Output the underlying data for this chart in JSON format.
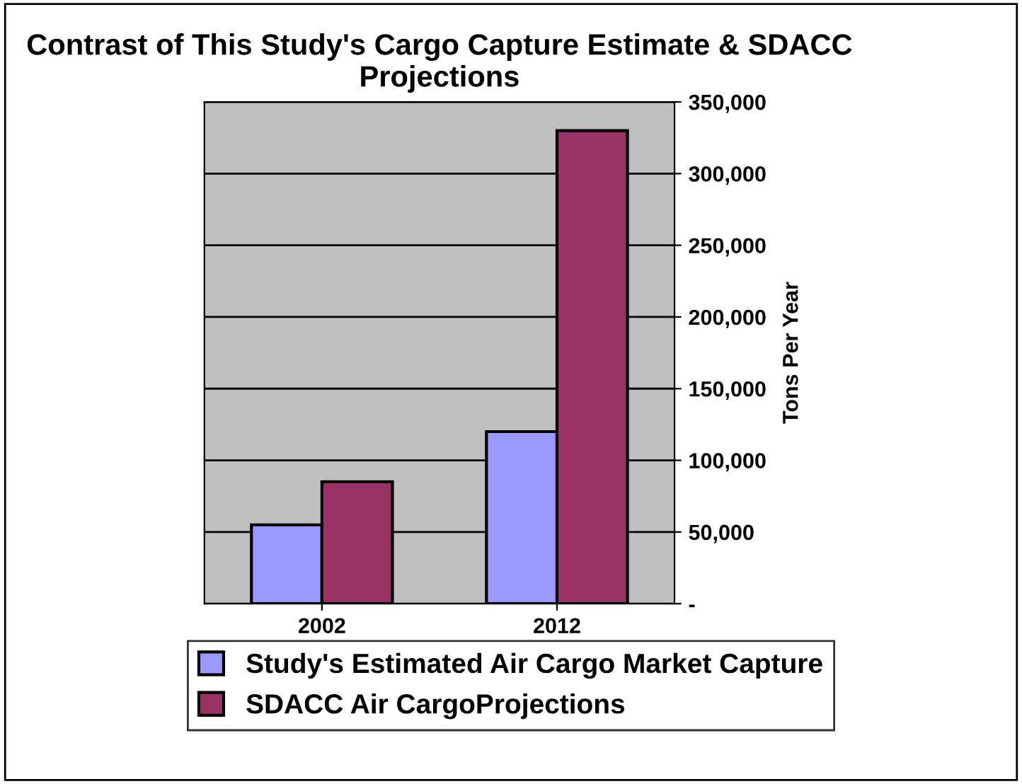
{
  "chart_data": {
    "type": "bar",
    "title": "Contrast of This Study's Cargo Capture Estimate & SDACC Projections",
    "ylabel": "Tons Per Year",
    "categories": [
      "2002",
      "2012"
    ],
    "series": [
      {
        "name": "Study's Estimated Air Cargo Market Capture",
        "color": "#9999ff",
        "values": [
          55000,
          120000
        ]
      },
      {
        "name": "SDACC Air CargoProjections",
        "color": "#993366",
        "values": [
          85000,
          330000
        ]
      }
    ],
    "ylim": [
      0,
      350000
    ],
    "yticks": [
      {
        "value": 0,
        "label": "-"
      },
      {
        "value": 50000,
        "label": "50,000"
      },
      {
        "value": 100000,
        "label": "100,000"
      },
      {
        "value": 150000,
        "label": "150,000"
      },
      {
        "value": 200000,
        "label": "200,000"
      },
      {
        "value": 250000,
        "label": "250,000"
      },
      {
        "value": 300000,
        "label": "300,000"
      },
      {
        "value": 350000,
        "label": "350,000"
      }
    ],
    "grid": "y",
    "legend": "bottom"
  }
}
